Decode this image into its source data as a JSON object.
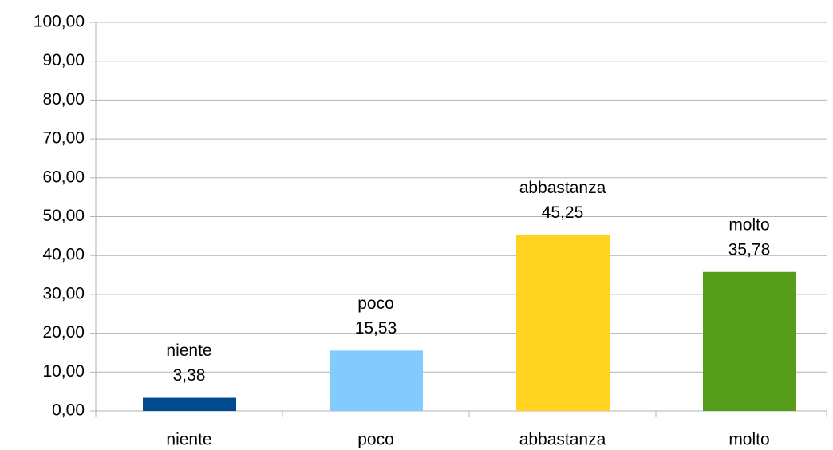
{
  "chart_data": {
    "type": "bar",
    "categories": [
      "niente",
      "poco",
      "abbastanza",
      "molto"
    ],
    "values": [
      3.38,
      15.53,
      45.25,
      35.78
    ],
    "value_labels": [
      "3,38",
      "15,53",
      "45,25",
      "35,78"
    ],
    "colors": [
      "#004a8f",
      "#83caff",
      "#ffd320",
      "#579d1c"
    ],
    "ylim": [
      0,
      100
    ],
    "yticks": [
      {
        "value": 0,
        "label": "0,00"
      },
      {
        "value": 10,
        "label": "10,00"
      },
      {
        "value": 20,
        "label": "20,00"
      },
      {
        "value": 30,
        "label": "30,00"
      },
      {
        "value": 40,
        "label": "40,00"
      },
      {
        "value": 50,
        "label": "50,00"
      },
      {
        "value": 60,
        "label": "60,00"
      },
      {
        "value": 70,
        "label": "70,00"
      },
      {
        "value": 80,
        "label": "80,00"
      },
      {
        "value": 90,
        "label": "90,00"
      },
      {
        "value": 100,
        "label": "100,00"
      }
    ],
    "grid": true
  }
}
